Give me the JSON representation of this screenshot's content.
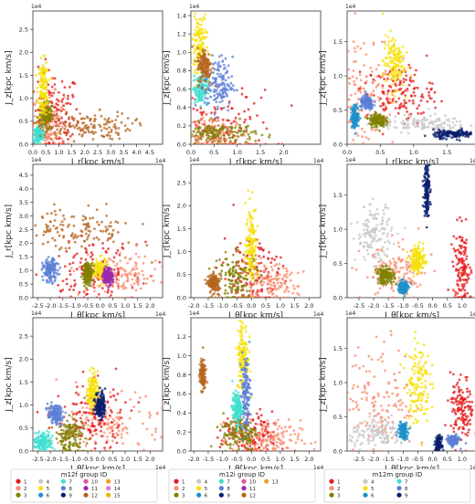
{
  "figure": {
    "legend_titles": [
      "m12f group ID",
      "m12i group ID",
      "m12m group ID"
    ],
    "axis_labels": {
      "Jz": "J_z[kpc km/s]",
      "Jr": "J_r[kpc km/s]",
      "Jtheta": "J_θ[kpc km/s]"
    }
  },
  "colors": {
    "g1": "#e41a1c",
    "g2": "#fa8c6f",
    "g3": "#808000",
    "g4": "#c8c8c8",
    "g5": "#f5e10a",
    "g6": "#1e90c8",
    "g7": "#40e0d0",
    "g8": "#5b7fd6",
    "g9": "#0a1e6e",
    "g10": "#e2559a",
    "g11": "#9c27b0",
    "g12": "#b5651d",
    "g13": "#f0a030",
    "g14": "#e879c9",
    "g15": "#e6b800"
  },
  "chart_data": [
    {
      "type": "scatter",
      "panel": "m12f Jz vs Jr",
      "xlabel": "J_r[kpc km/s]",
      "ylabel": "J_z[kpc km/s]",
      "x_offset_text": "1e4",
      "y_offset_text": "1e4",
      "xlim": [
        0,
        0.5
      ],
      "ylim": [
        0,
        0.29
      ],
      "xticks": [
        "0.0",
        "0.5",
        "1.0",
        "1.5",
        "2.0",
        "2.5",
        "3.0",
        "3.5",
        "4.0",
        "4.5"
      ],
      "yticks": [
        "0.0",
        "0.5",
        "1.0",
        "1.5",
        "2.0",
        "2.5"
      ],
      "groups": [
        {
          "id": "1",
          "cx": 0.08,
          "cy": 0.06,
          "sx": 0.05,
          "sy": 0.05
        },
        {
          "id": "2",
          "cx": 0.06,
          "cy": 0.05,
          "sx": 0.03,
          "sy": 0.03
        },
        {
          "id": "3",
          "cx": 0.05,
          "cy": 0.06,
          "sx": 0.015,
          "sy": 0.015
        },
        {
          "id": "5",
          "cx": 0.04,
          "cy": 0.12,
          "sx": 0.01,
          "sy": 0.03
        },
        {
          "id": "7",
          "cx": 0.02,
          "cy": 0.02,
          "sx": 0.01,
          "sy": 0.01
        },
        {
          "id": "12",
          "cx": 0.2,
          "cy": 0.04,
          "sx": 0.09,
          "sy": 0.015
        }
      ]
    },
    {
      "type": "scatter",
      "panel": "m12i Jz vs Jr",
      "xlabel": "J_r[kpc km/s]",
      "ylabel": "J_z[kpc km/s]",
      "x_offset_text": "1e4",
      "y_offset_text": "1e4",
      "xlim": [
        0,
        0.28
      ],
      "ylim": [
        0,
        1.45
      ],
      "xticks": [
        "0.0",
        "0.5",
        "1.0",
        "1.5",
        "2.0"
      ],
      "yticks": [
        "0.0",
        "0.2",
        "0.4",
        "0.6",
        "0.8",
        "1.0",
        "1.2",
        "1.4"
      ],
      "groups": [
        {
          "id": "1",
          "cx": 0.06,
          "cy": 0.18,
          "sx": 0.06,
          "sy": 0.2
        },
        {
          "id": "2",
          "cx": 0.05,
          "cy": 0.1,
          "sx": 0.04,
          "sy": 0.1
        },
        {
          "id": "3",
          "cx": 0.06,
          "cy": 0.12,
          "sx": 0.04,
          "sy": 0.06
        },
        {
          "id": "5",
          "cx": 0.018,
          "cy": 1.05,
          "sx": 0.008,
          "sy": 0.2
        },
        {
          "id": "7",
          "cx": 0.02,
          "cy": 0.6,
          "sx": 0.008,
          "sy": 0.08
        },
        {
          "id": "8",
          "cx": 0.06,
          "cy": 0.65,
          "sx": 0.015,
          "sy": 0.15
        },
        {
          "id": "12",
          "cx": 0.03,
          "cy": 0.85,
          "sx": 0.008,
          "sy": 0.1
        }
      ]
    },
    {
      "type": "scatter",
      "panel": "m12m Jz vs Jr",
      "xlabel": "J_r[kpc km/s]",
      "ylabel": "J_z[kpc km/s]",
      "x_offset_text": "1e4",
      "y_offset_text": "1e4",
      "xlim": [
        0,
        1.95
      ],
      "ylim": [
        0,
        1.95
      ],
      "xticks": [
        "0.0",
        "0.5",
        "1.0",
        "1.5"
      ],
      "yticks": [
        "0.0",
        "0.5",
        "1.0",
        "1.5"
      ],
      "groups": [
        {
          "id": "2",
          "cx": 0.25,
          "cy": 0.8,
          "sx": 0.25,
          "sy": 0.45
        },
        {
          "id": "1",
          "cx": 0.8,
          "cy": 0.75,
          "sx": 0.25,
          "sy": 0.2
        },
        {
          "id": "5",
          "cx": 0.7,
          "cy": 1.2,
          "sx": 0.08,
          "sy": 0.2
        },
        {
          "id": "4",
          "cx": 1.1,
          "cy": 0.3,
          "sx": 0.35,
          "sy": 0.06
        },
        {
          "id": "6",
          "cx": 0.12,
          "cy": 0.4,
          "sx": 0.03,
          "sy": 0.08
        },
        {
          "id": "3",
          "cx": 0.45,
          "cy": 0.35,
          "sx": 0.06,
          "sy": 0.05
        },
        {
          "id": "9",
          "cx": 1.6,
          "cy": 0.15,
          "sx": 0.15,
          "sy": 0.03
        },
        {
          "id": "8",
          "cx": 0.3,
          "cy": 0.6,
          "sx": 0.05,
          "sy": 0.05
        }
      ]
    },
    {
      "type": "scatter",
      "panel": "m12f Jr vs Jtheta",
      "xlabel": "J_θ[kpc km/s]",
      "ylabel": "J_r[kpc km/s]",
      "x_offset_text": "1e4",
      "y_offset_text": "1e4",
      "xlim": [
        -2.7,
        2.5
      ],
      "ylim": [
        0,
        0.49
      ],
      "xticks": [
        "-2.5",
        "-2.0",
        "-1.5",
        "-1.0",
        "-0.5",
        "0.0",
        "0.5",
        "1.0",
        "1.5",
        "2.0"
      ],
      "yticks": [
        "0.0",
        "0.5",
        "1.0",
        "1.5",
        "2.0",
        "2.5",
        "3.0",
        "3.5",
        "4.0",
        "4.5"
      ],
      "groups": [
        {
          "id": "1",
          "cx": -0.3,
          "cy": 0.1,
          "sx": 0.9,
          "sy": 0.05
        },
        {
          "id": "2",
          "cx": 0.8,
          "cy": 0.08,
          "sx": 0.8,
          "sy": 0.04
        },
        {
          "id": "12",
          "cx": -1.0,
          "cy": 0.25,
          "sx": 1.2,
          "sy": 0.04
        },
        {
          "id": "5",
          "cx": 0.0,
          "cy": 0.1,
          "sx": 0.15,
          "sy": 0.02
        },
        {
          "id": "8",
          "cx": -2.0,
          "cy": 0.1,
          "sx": 0.15,
          "sy": 0.02
        },
        {
          "id": "3",
          "cx": -0.5,
          "cy": 0.09,
          "sx": 0.1,
          "sy": 0.02
        },
        {
          "id": "11",
          "cx": 0.3,
          "cy": 0.08,
          "sx": 0.1,
          "sy": 0.015
        }
      ]
    },
    {
      "type": "scatter",
      "panel": "m12i Jr vs Jtheta",
      "xlabel": "J_θ[kpc km/s]",
      "ylabel": "J_r[kpc km/s]",
      "x_offset_text": "1e4",
      "y_offset_text": "1e4",
      "xlim": [
        -2.1,
        2.4
      ],
      "ylim": [
        0,
        0.29
      ],
      "xticks": [
        "-2.0",
        "-1.5",
        "-1.0",
        "-0.5",
        "0.0",
        "0.5",
        "1.0",
        "1.5",
        "2.0"
      ],
      "yticks": [
        "0.0",
        "0.5",
        "1.0",
        "1.5",
        "2.0",
        "2.5"
      ],
      "groups": [
        {
          "id": "1",
          "cx": 0.0,
          "cy": 0.05,
          "sx": 0.5,
          "sy": 0.05
        },
        {
          "id": "2",
          "cx": 0.6,
          "cy": 0.03,
          "sx": 0.5,
          "sy": 0.02
        },
        {
          "id": "3",
          "cx": -0.5,
          "cy": 0.04,
          "sx": 0.4,
          "sy": 0.03
        },
        {
          "id": "5",
          "cx": 0.0,
          "cy": 0.12,
          "sx": 0.1,
          "sy": 0.04
        },
        {
          "id": "12",
          "cx": -1.3,
          "cy": 0.03,
          "sx": 0.1,
          "sy": 0.01
        }
      ]
    },
    {
      "type": "scatter",
      "panel": "m12m Jr vs Jtheta",
      "xlabel": "J_θ[kpc km/s]",
      "ylabel": "J_r[kpc km/s]",
      "x_offset_text": "1e4",
      "y_offset_text": "1e4",
      "xlim": [
        -2.9,
        1.5
      ],
      "ylim": [
        0,
        1.95
      ],
      "xticks": [
        "-2.5",
        "-2.0",
        "-1.5",
        "-1.0",
        "-0.5",
        "0.0",
        "0.5",
        "1.0"
      ],
      "yticks": [
        "0.0",
        "0.5",
        "1.0",
        "1.5"
      ],
      "groups": [
        {
          "id": "4",
          "cx": -2.0,
          "cy": 0.95,
          "sx": 0.3,
          "sy": 0.2
        },
        {
          "id": "2",
          "cx": -1.2,
          "cy": 0.35,
          "sx": 0.6,
          "sy": 0.2
        },
        {
          "id": "3",
          "cx": -1.6,
          "cy": 0.32,
          "sx": 0.15,
          "sy": 0.06
        },
        {
          "id": "5",
          "cx": -0.5,
          "cy": 0.55,
          "sx": 0.12,
          "sy": 0.1
        },
        {
          "id": "1",
          "cx": 1.0,
          "cy": 0.4,
          "sx": 0.15,
          "sy": 0.3
        },
        {
          "id": "9",
          "cx": -0.2,
          "cy": 1.6,
          "sx": 0.05,
          "sy": 0.2
        },
        {
          "id": "6",
          "cx": -1.0,
          "cy": 0.15,
          "sx": 0.08,
          "sy": 0.05
        }
      ]
    },
    {
      "type": "scatter",
      "panel": "m12f Jz vs Jtheta",
      "xlabel": "J_θ[kpc km/s]",
      "ylabel": "J_z[kpc km/s]",
      "x_offset_text": "1e4",
      "y_offset_text": "1e4",
      "xlim": [
        -2.7,
        2.5
      ],
      "ylim": [
        0,
        0.29
      ],
      "xticks": [
        "-2.5",
        "-2.0",
        "-1.5",
        "-1.0",
        "-0.5",
        "0.0",
        "0.5",
        "1.0",
        "1.5",
        "2.0"
      ],
      "yticks": [
        "0.0",
        "0.5",
        "1.0",
        "1.5",
        "2.0",
        "2.5"
      ],
      "groups": [
        {
          "id": "2",
          "cx": 0.6,
          "cy": 0.06,
          "sx": 1.0,
          "sy": 0.03
        },
        {
          "id": "1",
          "cx": -0.4,
          "cy": 0.07,
          "sx": 0.7,
          "sy": 0.04
        },
        {
          "id": "3",
          "cx": -1.2,
          "cy": 0.03,
          "sx": 0.3,
          "sy": 0.02
        },
        {
          "id": "8",
          "cx": -1.8,
          "cy": 0.08,
          "sx": 0.15,
          "sy": 0.01
        },
        {
          "id": "5",
          "cx": -0.3,
          "cy": 0.13,
          "sx": 0.1,
          "sy": 0.02
        },
        {
          "id": "9",
          "cx": 0.0,
          "cy": 0.1,
          "sx": 0.1,
          "sy": 0.015
        },
        {
          "id": "7",
          "cx": -2.3,
          "cy": 0.02,
          "sx": 0.2,
          "sy": 0.01
        }
      ]
    },
    {
      "type": "scatter",
      "panel": "m12i Jz vs Jtheta",
      "xlabel": "J_θ[kpc km/s]",
      "ylabel": "J_z[kpc km/s]",
      "x_offset_text": "1e4",
      "y_offset_text": "1e4",
      "xlim": [
        -2.1,
        2.4
      ],
      "ylim": [
        0,
        1.4
      ],
      "xticks": [
        "-2.0",
        "-1.5",
        "-1.0",
        "-0.5",
        "0.0",
        "0.5",
        "1.0",
        "1.5",
        "2.0"
      ],
      "yticks": [
        "0.0",
        "0.2",
        "0.4",
        "0.6",
        "0.8",
        "1.0",
        "1.2"
      ],
      "groups": [
        {
          "id": "1",
          "cx": 0.0,
          "cy": 0.15,
          "sx": 0.5,
          "sy": 0.12
        },
        {
          "id": "2",
          "cx": 0.5,
          "cy": 0.12,
          "sx": 0.6,
          "sy": 0.1
        },
        {
          "id": "3",
          "cx": -0.4,
          "cy": 0.2,
          "sx": 0.3,
          "sy": 0.1
        },
        {
          "id": "5",
          "cx": -0.3,
          "cy": 1.0,
          "sx": 0.1,
          "sy": 0.2
        },
        {
          "id": "8",
          "cx": -0.2,
          "cy": 0.6,
          "sx": 0.08,
          "sy": 0.2
        },
        {
          "id": "7",
          "cx": -0.5,
          "cy": 0.45,
          "sx": 0.08,
          "sy": 0.08
        },
        {
          "id": "12",
          "cx": -1.7,
          "cy": 0.8,
          "sx": 0.05,
          "sy": 0.08
        }
      ]
    },
    {
      "type": "scatter",
      "panel": "m12m Jz vs Jtheta",
      "xlabel": "J_θ[kpc km/s]",
      "ylabel": "J_z[kpc km/s]",
      "x_offset_text": "1e4",
      "y_offset_text": "1e4",
      "xlim": [
        -2.9,
        1.5
      ],
      "ylim": [
        0,
        1.95
      ],
      "xticks": [
        "-2.5",
        "-2.0",
        "-1.5",
        "-1.0",
        "-0.5",
        "0.0",
        "0.5",
        "1.0"
      ],
      "yticks": [
        "0.0",
        "0.5",
        "1.0",
        "1.5"
      ],
      "groups": [
        {
          "id": "2",
          "cx": -1.8,
          "cy": 0.8,
          "sx": 0.6,
          "sy": 0.4
        },
        {
          "id": "5",
          "cx": -0.5,
          "cy": 1.0,
          "sx": 0.2,
          "sy": 0.3
        },
        {
          "id": "1",
          "cx": 1.0,
          "cy": 0.6,
          "sx": 0.2,
          "sy": 0.25
        },
        {
          "id": "4",
          "cx": -1.8,
          "cy": 0.25,
          "sx": 0.5,
          "sy": 0.1
        },
        {
          "id": "6",
          "cx": -1.0,
          "cy": 0.3,
          "sx": 0.08,
          "sy": 0.06
        },
        {
          "id": "9",
          "cx": 0.2,
          "cy": 0.1,
          "sx": 0.05,
          "sy": 0.05
        },
        {
          "id": "8",
          "cx": 0.7,
          "cy": 0.15,
          "sx": 0.1,
          "sy": 0.04
        }
      ]
    }
  ],
  "legends": [
    {
      "title": "m12f group ID",
      "ids": [
        "1",
        "2",
        "3",
        "4",
        "5",
        "6",
        "7",
        "8",
        "9",
        "10",
        "11",
        "12",
        "13",
        "14",
        "15"
      ],
      "cols": 6
    },
    {
      "title": "m12i group ID",
      "ids": [
        "1",
        "2",
        "3",
        "4",
        "5",
        "6",
        "7",
        "8",
        "9",
        "10",
        "11",
        "12",
        "13"
      ],
      "cols": 6
    },
    {
      "title": "m12m group ID",
      "ids": [
        "1",
        "2",
        "3",
        "4",
        "5",
        "6",
        "7",
        "8",
        "9"
      ],
      "cols": 4
    }
  ]
}
